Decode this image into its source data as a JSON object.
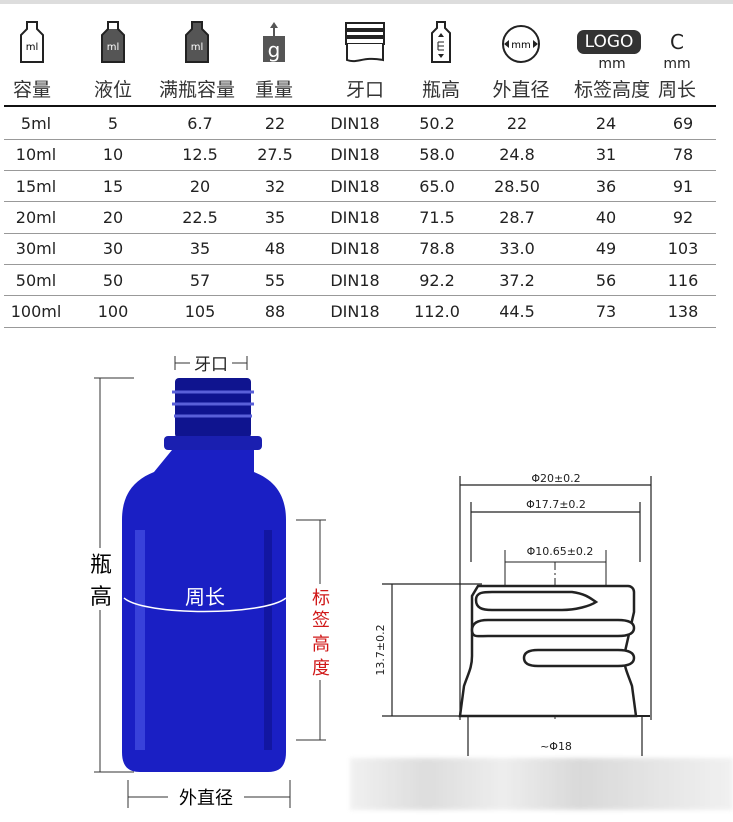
{
  "header": {
    "columns": [
      {
        "label": "容量",
        "icon": "bottle-ml-outline-icon"
      },
      {
        "label": "液位",
        "icon": "bottle-ml-filled-icon"
      },
      {
        "label": "满瓶容量",
        "icon": "bottle-full-ml-icon"
      },
      {
        "label": "重量",
        "icon": "weight-g-icon"
      },
      {
        "label": "牙口",
        "icon": "thread-neck-icon"
      },
      {
        "label": "瓶高",
        "icon": "bottle-height-icon"
      },
      {
        "label": "外直径",
        "icon": "diameter-mm-icon"
      },
      {
        "label": "标签高度",
        "icon": "logo-label-icon",
        "sub": "mm",
        "badge": "LOGO"
      },
      {
        "label": "周长",
        "icon": "circumference-icon",
        "sub": "mm",
        "badge": "C"
      }
    ],
    "ml_text": "ml",
    "g_text": "g",
    "mm_text": "mm"
  },
  "rows": [
    [
      "5ml",
      "5",
      "6.7",
      "22",
      "DIN18",
      "50.2",
      "22",
      "24",
      "69"
    ],
    [
      "10ml",
      "10",
      "12.5",
      "27.5",
      "DIN18",
      "58.0",
      "24.8",
      "31",
      "78"
    ],
    [
      "15ml",
      "15",
      "20",
      "32",
      "DIN18",
      "65.0",
      "28.50",
      "36",
      "91"
    ],
    [
      "20ml",
      "20",
      "22.5",
      "35",
      "DIN18",
      "71.5",
      "28.7",
      "40",
      "92"
    ],
    [
      "30ml",
      "30",
      "35",
      "48",
      "DIN18",
      "78.8",
      "33.0",
      "49",
      "103"
    ],
    [
      "50ml",
      "50",
      "57",
      "55",
      "DIN18",
      "92.2",
      "37.2",
      "56",
      "116"
    ],
    [
      "100ml",
      "100",
      "105",
      "88",
      "DIN18",
      "112.0",
      "44.5",
      "73",
      "138"
    ]
  ],
  "bottle_diagram": {
    "neck_label": "牙口",
    "height_label": [
      "瓶",
      "高"
    ],
    "circumference_label": "周长",
    "label_height_label": [
      "标",
      "签",
      "高",
      "度"
    ],
    "outer_diameter_label": "外直径",
    "bottle_color": "#1a1fc4",
    "label_color": "#d01818"
  },
  "neck_drawing": {
    "d_outer": "Φ20±0.2",
    "d_mid": "Φ17.7±0.2",
    "d_inner": "Φ10.65±0.2",
    "height": "13.7±0.2",
    "d_base": "~Φ18"
  }
}
